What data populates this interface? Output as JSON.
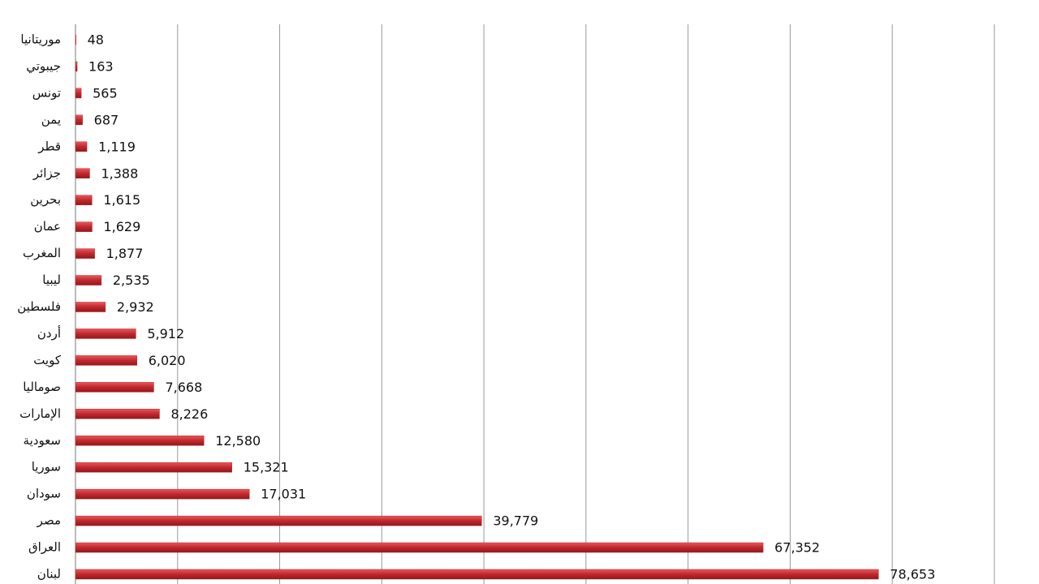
{
  "chart_data": {
    "type": "bar",
    "orientation": "horizontal",
    "categories": [
      "موريتانيا",
      "جيبوتي",
      "تونس",
      "يمن",
      "قطر",
      "جزائر",
      "بحرين",
      "عمان",
      "المغرب",
      "ليبيا",
      "فلسطين",
      "أردن",
      "كويت",
      "صوماليا",
      "الإمارات",
      "سعودية",
      "سوريا",
      "سودان",
      "مصر",
      "العراق",
      "لبنان"
    ],
    "values": [
      48,
      163,
      565,
      687,
      1119,
      1388,
      1615,
      1629,
      1877,
      2535,
      2932,
      5912,
      6020,
      7668,
      8226,
      12580,
      15321,
      17031,
      39779,
      67352,
      78653
    ],
    "value_labels": [
      "48",
      "163",
      "565",
      "687",
      "1,119",
      "1,388",
      "1,615",
      "1,629",
      "1,877",
      "2,535",
      "2,932",
      "5,912",
      "6,020",
      "7,668",
      "8,226",
      "12,580",
      "15,321",
      "17,031",
      "39,779",
      "67,352",
      "78,653"
    ],
    "color": "#c0282d",
    "xlim": [
      0,
      90000
    ],
    "xticks": [
      0,
      10000,
      20000,
      30000,
      40000,
      50000,
      60000,
      70000,
      80000,
      90000
    ],
    "grid": true
  }
}
